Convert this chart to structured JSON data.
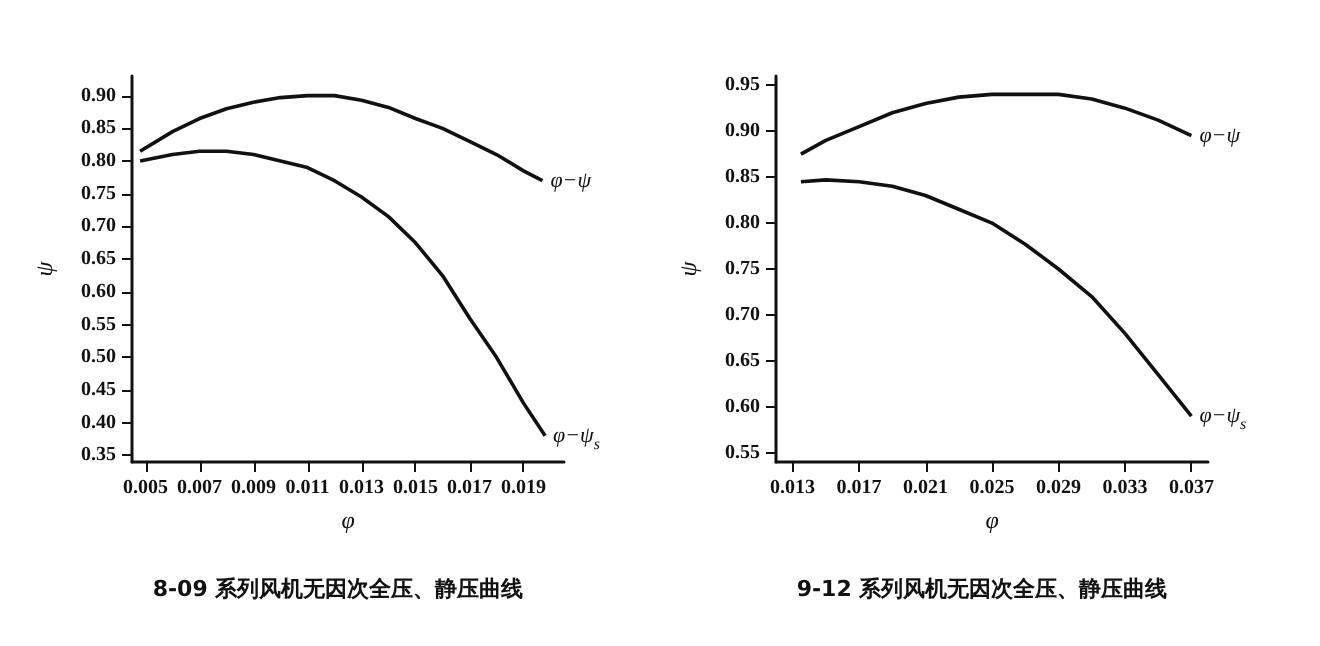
{
  "chart_data": [
    {
      "type": "line",
      "title": "8-09 系列风机无因次全压、静压曲线",
      "xlabel": "φ",
      "ylabel": "ψ",
      "xlim": [
        0.0045,
        0.0205
      ],
      "xticks": [
        0.005,
        0.007,
        0.009,
        0.011,
        0.013,
        0.015,
        0.017,
        0.019
      ],
      "ylim": [
        0.34,
        0.93
      ],
      "yticks": [
        0.35,
        {
          "value": 0.4,
          "label": "0.40"
        },
        0.45,
        {
          "value": 0.5,
          "label": "0.50"
        },
        0.55,
        {
          "value": 0.6,
          "label": "0.60"
        },
        0.65,
        {
          "value": 0.7,
          "label": "0.70"
        },
        0.75,
        {
          "value": 0.8,
          "label": "0.80"
        },
        0.85,
        {
          "value": 0.9,
          "label": "0.90"
        }
      ],
      "grid": false,
      "legend": false,
      "marker": "none",
      "series": [
        {
          "name": "φ−ψ",
          "color": "#111111",
          "x": [
            0.0048,
            0.006,
            0.007,
            0.008,
            0.009,
            0.01,
            0.011,
            0.012,
            0.013,
            0.014,
            0.015,
            0.016,
            0.017,
            0.018,
            0.019,
            0.0197
          ],
          "values": [
            0.815,
            0.845,
            0.865,
            0.88,
            0.89,
            0.897,
            0.9,
            0.9,
            0.893,
            0.882,
            0.865,
            0.85,
            0.83,
            0.81,
            0.785,
            0.77
          ]
        },
        {
          "name": "φ−ψ$_{s}$",
          "color": "#111111",
          "x": [
            0.0048,
            0.006,
            0.007,
            0.008,
            0.009,
            0.01,
            0.011,
            0.012,
            0.013,
            0.014,
            0.015,
            0.016,
            0.017,
            0.018,
            0.019,
            0.0198
          ],
          "values": [
            0.8,
            0.81,
            0.815,
            0.815,
            0.81,
            0.8,
            0.79,
            0.77,
            0.745,
            0.715,
            0.675,
            0.625,
            0.56,
            0.5,
            0.43,
            0.38
          ]
        }
      ]
    },
    {
      "type": "line",
      "title": "9-12 系列风机无因次全压、静压曲线",
      "xlabel": "φ",
      "ylabel": "ψ",
      "xlim": [
        0.012,
        0.038
      ],
      "xticks": [
        0.013,
        0.017,
        0.021,
        0.025,
        0.029,
        0.033,
        0.037
      ],
      "ylim": [
        0.54,
        0.96
      ],
      "yticks": [
        0.55,
        {
          "value": 0.6,
          "label": "0.60"
        },
        0.65,
        {
          "value": 0.7,
          "label": "0.70"
        },
        0.75,
        {
          "value": 0.8,
          "label": "0.80"
        },
        0.85,
        {
          "value": 0.9,
          "label": "0.90"
        },
        0.95
      ],
      "grid": false,
      "legend": false,
      "marker": "none",
      "series": [
        {
          "name": "φ−ψ",
          "color": "#111111",
          "x": [
            0.0135,
            0.015,
            0.017,
            0.019,
            0.021,
            0.023,
            0.025,
            0.027,
            0.029,
            0.031,
            0.033,
            0.035,
            0.037
          ],
          "values": [
            0.875,
            0.89,
            0.905,
            0.92,
            0.93,
            0.937,
            0.94,
            0.94,
            0.94,
            0.935,
            0.925,
            0.912,
            0.895
          ]
        },
        {
          "name": "φ−ψ$_{s}$",
          "color": "#111111",
          "x": [
            0.0135,
            0.015,
            0.017,
            0.019,
            0.021,
            0.023,
            0.025,
            0.027,
            0.029,
            0.031,
            0.033,
            0.035,
            0.037
          ],
          "values": [
            0.845,
            0.847,
            0.845,
            0.84,
            0.83,
            0.815,
            0.8,
            0.777,
            0.75,
            0.72,
            0.68,
            0.635,
            0.59
          ]
        }
      ]
    }
  ]
}
